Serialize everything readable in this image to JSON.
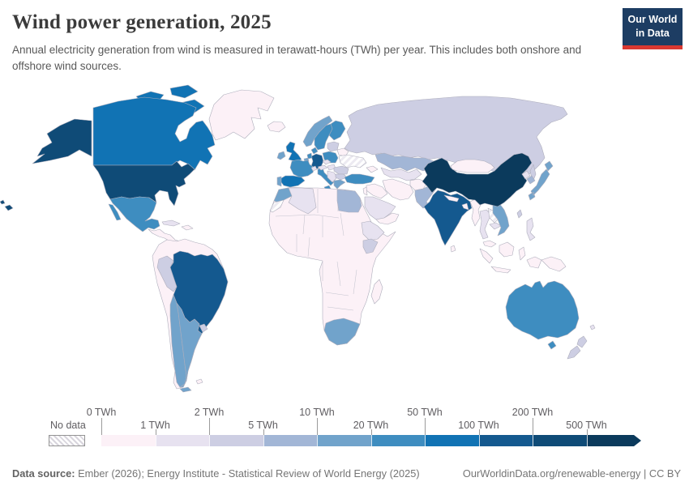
{
  "header": {
    "title": "Wind power generation, 2025",
    "subtitle": "Annual electricity generation from wind is measured in terawatt-hours (TWh) per year. This includes both onshore and offshore wind sources.",
    "logo": {
      "line1": "Our World",
      "line2": "in Data",
      "bg_color": "#1d3d63",
      "accent_color": "#d93831"
    }
  },
  "footer": {
    "datasource_label": "Data source:",
    "datasource": " Ember (2026); Energy Institute - Statistical Review of World Energy (2025)",
    "link": "OurWorldinData.org/renewable-energy",
    "separator": " | ",
    "license": "CC BY"
  },
  "chart_data": {
    "type": "choropleth-map",
    "title": "Wind power generation, 2025",
    "unit": "TWh",
    "legend": {
      "no_data_label": "No data",
      "edge_labels": [
        "0 TWh",
        "1 TWh",
        "2 TWh",
        "5 TWh",
        "10 TWh",
        "20 TWh",
        "50 TWh",
        "100 TWh",
        "200 TWh",
        "500 TWh"
      ],
      "bin_ranges": [
        "0-1 TWh",
        "1-2 TWh",
        "2-5 TWh",
        "5-10 TWh",
        "10-20 TWh",
        "20-50 TWh",
        "50-100 TWh",
        "100-200 TWh",
        "200-500 TWh",
        ">500 TWh"
      ],
      "bin_colors": [
        "#fcf1f7",
        "#e7e2f0",
        "#cdcee3",
        "#a2b6d6",
        "#71a3cb",
        "#3e8dc0",
        "#1173b4",
        "#14598f",
        "#0f4b77",
        "#0b3a5c"
      ]
    },
    "countries": [
      {
        "id": "usa",
        "name": "United States",
        "bin": 8,
        "value": "200-500 TWh"
      },
      {
        "id": "canada",
        "name": "Canada",
        "bin": 6,
        "value": "50-100 TWh"
      },
      {
        "id": "greenland",
        "name": "Greenland",
        "bin": 0,
        "value": "0-1 TWh"
      },
      {
        "id": "mexico",
        "name": "Mexico",
        "bin": 5,
        "value": "20-50 TWh"
      },
      {
        "id": "central-america",
        "name": "Central America",
        "bin": 0,
        "value": "0-1 TWh"
      },
      {
        "id": "cuba",
        "name": "Cuba",
        "bin": 1,
        "value": "1-2 TWh"
      },
      {
        "id": "hispaniola",
        "name": "Caribbean",
        "bin": 0,
        "value": "0-1 TWh"
      },
      {
        "id": "sa-base",
        "name": "Northern South America",
        "bin": 0,
        "value": "0-1 TWh"
      },
      {
        "id": "brazil",
        "name": "Brazil",
        "bin": 7,
        "value": "100-200 TWh"
      },
      {
        "id": "peru",
        "name": "Peru",
        "bin": 2,
        "value": "2-5 TWh"
      },
      {
        "id": "chile",
        "name": "Chile",
        "bin": 4,
        "value": "10-20 TWh"
      },
      {
        "id": "argentina",
        "name": "Argentina",
        "bin": 4,
        "value": "10-20 TWh"
      },
      {
        "id": "uruguay",
        "name": "Uruguay",
        "bin": 2,
        "value": "2-5 TWh"
      },
      {
        "id": "falklands",
        "name": "Falkland Islands",
        "bin": 0,
        "value": "0-1 TWh"
      },
      {
        "id": "iceland",
        "name": "Iceland",
        "bin": 0,
        "value": "0-1 TWh"
      },
      {
        "id": "uk",
        "name": "United Kingdom",
        "bin": 6,
        "value": "50-100 TWh"
      },
      {
        "id": "ireland",
        "name": "Ireland",
        "bin": 4,
        "value": "10-20 TWh"
      },
      {
        "id": "norway",
        "name": "Norway",
        "bin": 4,
        "value": "10-20 TWh"
      },
      {
        "id": "sweden",
        "name": "Sweden",
        "bin": 5,
        "value": "20-50 TWh"
      },
      {
        "id": "finland",
        "name": "Finland",
        "bin": 5,
        "value": "20-50 TWh"
      },
      {
        "id": "denmark",
        "name": "Denmark",
        "bin": 5,
        "value": "20-50 TWh"
      },
      {
        "id": "baltics",
        "name": "Baltic states",
        "bin": 2,
        "value": "2-5 TWh"
      },
      {
        "id": "germany",
        "name": "Germany",
        "bin": 7,
        "value": "100-200 TWh"
      },
      {
        "id": "netherlands",
        "name": "Netherlands",
        "bin": 5,
        "value": "20-50 TWh"
      },
      {
        "id": "belgium",
        "name": "Belgium",
        "bin": 4,
        "value": "10-20 TWh"
      },
      {
        "id": "france",
        "name": "France",
        "bin": 5,
        "value": "20-50 TWh"
      },
      {
        "id": "spain",
        "name": "Spain",
        "bin": 6,
        "value": "50-100 TWh"
      },
      {
        "id": "portugal",
        "name": "Portugal",
        "bin": 4,
        "value": "10-20 TWh"
      },
      {
        "id": "italy",
        "name": "Italy",
        "bin": 5,
        "value": "20-50 TWh"
      },
      {
        "id": "switzerland",
        "name": "Switzerland",
        "bin": 1,
        "value": "1-2 TWh"
      },
      {
        "id": "czechia",
        "name": "Czechia",
        "bin": 1,
        "value": "1-2 TWh"
      },
      {
        "id": "austria",
        "name": "Austria",
        "bin": 1,
        "value": "1-2 TWh"
      },
      {
        "id": "hungary",
        "name": "Hungary",
        "bin": 1,
        "value": "1-2 TWh"
      },
      {
        "id": "poland",
        "name": "Poland",
        "bin": 5,
        "value": "20-50 TWh"
      },
      {
        "id": "belarus",
        "name": "Belarus",
        "bin": 0,
        "value": "0-1 TWh"
      },
      {
        "id": "ukraine",
        "name": "Ukraine",
        "no_data": true,
        "value": "No data"
      },
      {
        "id": "romania",
        "name": "Romania",
        "bin": 2,
        "value": "2-5 TWh"
      },
      {
        "id": "balkans",
        "name": "Western Balkans",
        "bin": 1,
        "value": "1-2 TWh"
      },
      {
        "id": "bulgaria",
        "name": "Bulgaria",
        "bin": 2,
        "value": "2-5 TWh"
      },
      {
        "id": "greece",
        "name": "Greece",
        "bin": 4,
        "value": "10-20 TWh"
      },
      {
        "id": "russia",
        "name": "Russia",
        "bin": 2,
        "value": "2-5 TWh"
      },
      {
        "id": "sakhalin",
        "name": "Russia (Sakhalin)",
        "bin": 2,
        "value": "2-5 TWh"
      },
      {
        "id": "kazakhstan",
        "name": "Kazakhstan",
        "bin": 3,
        "value": "5-10 TWh"
      },
      {
        "id": "central-asia",
        "name": "Central Asia",
        "bin": 1,
        "value": "1-2 TWh"
      },
      {
        "id": "caucasus",
        "name": "Caucasus",
        "bin": 0,
        "value": "0-1 TWh"
      },
      {
        "id": "turkey",
        "name": "Turkey",
        "bin": 5,
        "value": "20-50 TWh"
      },
      {
        "id": "syria-iraq",
        "name": "Syria / Iraq",
        "bin": 0,
        "value": "0-1 TWh"
      },
      {
        "id": "jordan",
        "name": "Jordan / Israel",
        "bin": 0,
        "value": "0-1 TWh"
      },
      {
        "id": "saudi",
        "name": "Saudi Arabia",
        "bin": 1,
        "value": "1-2 TWh"
      },
      {
        "id": "yemen-oman",
        "name": "Yemen / Oman",
        "bin": 0,
        "value": "0-1 TWh"
      },
      {
        "id": "iran",
        "name": "Iran",
        "bin": 0,
        "value": "0-1 TWh"
      },
      {
        "id": "afghanistan",
        "name": "Afghanistan",
        "bin": 0,
        "value": "0-1 TWh"
      },
      {
        "id": "pakistan",
        "name": "Pakistan",
        "bin": 3,
        "value": "5-10 TWh"
      },
      {
        "id": "india",
        "name": "India",
        "bin": 7,
        "value": "100-200 TWh"
      },
      {
        "id": "nepal",
        "name": "Nepal",
        "bin": 0,
        "value": "0-1 TWh"
      },
      {
        "id": "bangladesh",
        "name": "Bangladesh",
        "bin": 0,
        "value": "0-1 TWh"
      },
      {
        "id": "sri-lanka",
        "name": "Sri Lanka",
        "bin": 0,
        "value": "0-1 TWh"
      },
      {
        "id": "myanmar",
        "name": "Myanmar",
        "bin": 0,
        "value": "0-1 TWh"
      },
      {
        "id": "thailand",
        "name": "Thailand",
        "bin": 1,
        "value": "1-2 TWh"
      },
      {
        "id": "laos",
        "name": "Laos",
        "no_data": true,
        "value": "No data"
      },
      {
        "id": "cambodia",
        "name": "Cambodia",
        "bin": 1,
        "value": "1-2 TWh"
      },
      {
        "id": "vietnam",
        "name": "Vietnam",
        "bin": 4,
        "value": "10-20 TWh"
      },
      {
        "id": "malaysia",
        "name": "Malaysia",
        "bin": 0,
        "value": "0-1 TWh"
      },
      {
        "id": "indonesia",
        "name": "Indonesia",
        "bin": 0,
        "value": "0-1 TWh"
      },
      {
        "id": "philippines",
        "name": "Philippines",
        "bin": 1,
        "value": "1-2 TWh"
      },
      {
        "id": "taiwan",
        "name": "Taiwan",
        "bin": 2,
        "value": "2-5 TWh"
      },
      {
        "id": "china",
        "name": "China",
        "bin": 9,
        "value": ">500 TWh"
      },
      {
        "id": "mongolia",
        "name": "Mongolia",
        "bin": 0,
        "value": "0-1 TWh"
      },
      {
        "id": "nkorea",
        "name": "North Korea",
        "bin": 1,
        "value": "1-2 TWh"
      },
      {
        "id": "skorea",
        "name": "South Korea",
        "bin": 3,
        "value": "5-10 TWh"
      },
      {
        "id": "japan",
        "name": "Japan",
        "bin": 4,
        "value": "10-20 TWh"
      },
      {
        "id": "png",
        "name": "Papua New Guinea",
        "bin": 0,
        "value": "0-1 TWh"
      },
      {
        "id": "australia",
        "name": "Australia",
        "bin": 5,
        "value": "20-50 TWh"
      },
      {
        "id": "nz",
        "name": "New Zealand",
        "bin": 2,
        "value": "2-5 TWh"
      },
      {
        "id": "fiji",
        "name": "Pacific islands",
        "bin": 1,
        "value": "1-2 TWh"
      },
      {
        "id": "africa-base",
        "name": "Other Africa",
        "bin": 0,
        "value": "0-1 TWh"
      },
      {
        "id": "morocco",
        "name": "Morocco",
        "bin": 4,
        "value": "10-20 TWh"
      },
      {
        "id": "wsahara",
        "name": "Western Sahara",
        "no_data": true,
        "value": "No data"
      },
      {
        "id": "algeria",
        "name": "Algeria",
        "bin": 1,
        "value": "1-2 TWh"
      },
      {
        "id": "egypt",
        "name": "Egypt",
        "bin": 3,
        "value": "5-10 TWh"
      },
      {
        "id": "ethiopia",
        "name": "Ethiopia",
        "bin": 1,
        "value": "1-2 TWh"
      },
      {
        "id": "kenya",
        "name": "Kenya",
        "bin": 2,
        "value": "2-5 TWh"
      },
      {
        "id": "south-africa",
        "name": "South Africa",
        "bin": 4,
        "value": "10-20 TWh"
      },
      {
        "id": "madagascar",
        "name": "Madagascar",
        "bin": 0,
        "value": "0-1 TWh"
      },
      {
        "id": "hawaii",
        "name": "United States (Hawaii)",
        "bin": 8,
        "value": "200-500 TWh"
      }
    ]
  }
}
